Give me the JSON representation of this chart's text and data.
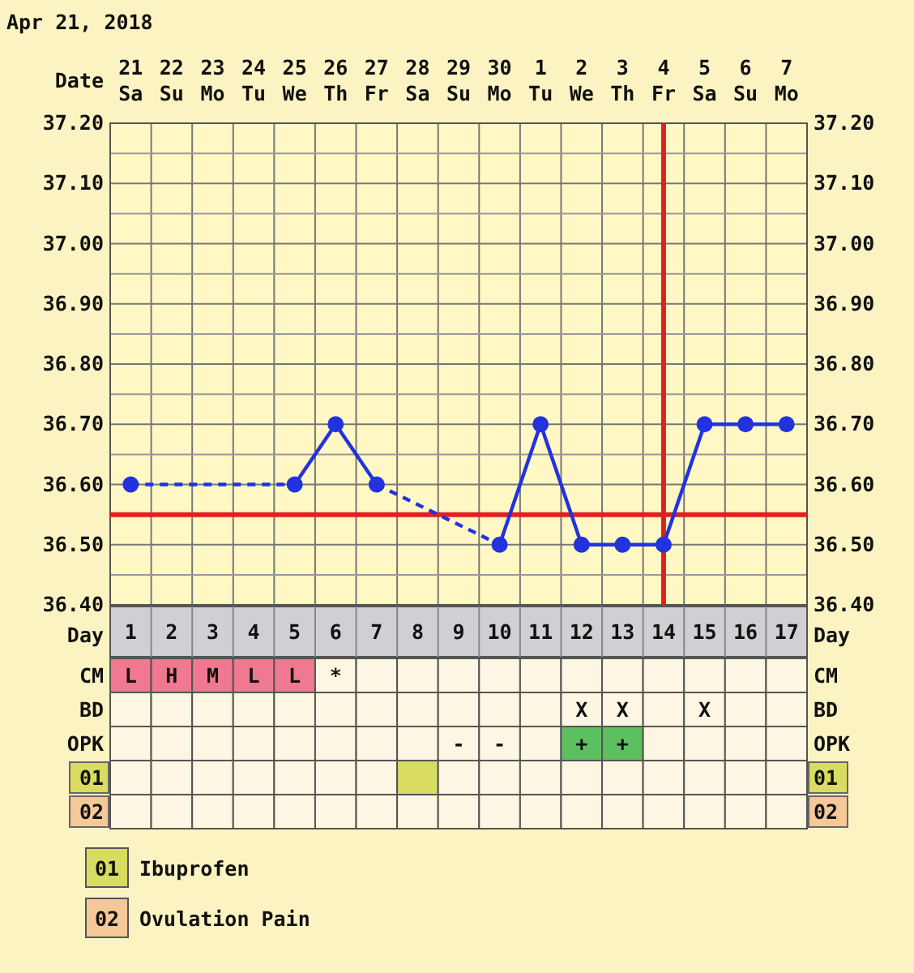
{
  "chart_data": [
    {
      "type": "line",
      "title": "Apr 21, 2018",
      "xlabel": "Day",
      "x2label": "Date",
      "x": [
        1,
        2,
        3,
        4,
        5,
        6,
        7,
        8,
        9,
        10,
        11,
        12,
        13,
        14,
        15,
        16,
        17
      ],
      "xlim": [
        0.5,
        17.5
      ],
      "xticks": [
        1,
        2,
        3,
        4,
        5,
        6,
        7,
        8,
        9,
        10,
        11,
        12,
        13,
        14,
        15,
        16,
        17
      ],
      "x2lim": [
        "2018-04-20T12:00",
        "2018-05-07T12:00"
      ],
      "x2ticks": [
        {
          "value": "2018-04-21",
          "label": "21 Sa"
        },
        {
          "value": "2018-04-22",
          "label": "22 Su"
        },
        {
          "value": "2018-04-23",
          "label": "23 Mo"
        },
        {
          "value": "2018-04-24",
          "label": "24 Tu"
        },
        {
          "value": "2018-04-25",
          "label": "25 We"
        },
        {
          "value": "2018-04-26",
          "label": "26 Th"
        },
        {
          "value": "2018-04-27",
          "label": "27 Fr"
        },
        {
          "value": "2018-04-28",
          "label": "28 Sa"
        },
        {
          "value": "2018-04-29",
          "label": "29 Su"
        },
        {
          "value": "2018-04-30",
          "label": "30 Mo"
        },
        {
          "value": "2018-05-01",
          "label": "1 Tu"
        },
        {
          "value": "2018-05-02",
          "label": "2 We"
        },
        {
          "value": "2018-05-03",
          "label": "3 Th"
        },
        {
          "value": "2018-05-04",
          "label": "4 Fr"
        },
        {
          "value": "2018-05-05",
          "label": "5 Sa"
        },
        {
          "value": "2018-05-06",
          "label": "6 Su"
        },
        {
          "value": "2018-05-07",
          "label": "7 Mo"
        }
      ],
      "series": [
        {
          "color": "#2233dd",
          "values": [
            36.6,
            null,
            null,
            null,
            36.6,
            36.7,
            36.6,
            null,
            null,
            36.5,
            36.7,
            36.5,
            36.5,
            36.5,
            36.7,
            36.7,
            36.7
          ]
        }
      ],
      "marker": "circle",
      "line_style": "solid",
      "ylim": [
        36.4,
        37.2
      ],
      "yticks": [
        {
          "value": 36.4,
          "label": "36.40"
        },
        {
          "value": 36.5,
          "label": "36.50"
        },
        {
          "value": 36.6,
          "label": "36.60"
        },
        {
          "value": 36.7,
          "label": "36.70"
        },
        {
          "value": 36.8,
          "label": "36.80"
        },
        {
          "value": 36.9,
          "label": "36.90"
        },
        {
          "value": 37.0,
          "label": "37.00"
        },
        {
          "value": 37.1,
          "label": "37.10"
        },
        {
          "value": 37.2,
          "label": "37.20"
        }
      ],
      "y2lim": [
        36.4,
        37.2
      ],
      "y2ticks": [
        {
          "value": 36.4,
          "label": "36.40"
        },
        {
          "value": 36.5,
          "label": "36.50"
        },
        {
          "value": 36.6,
          "label": "36.60"
        },
        {
          "value": 36.7,
          "label": "36.70"
        },
        {
          "value": 36.8,
          "label": "36.80"
        },
        {
          "value": 36.9,
          "label": "36.90"
        },
        {
          "value": 37.0,
          "label": "37.00"
        },
        {
          "value": 37.1,
          "label": "37.10"
        },
        {
          "value": 37.2,
          "label": "37.20"
        }
      ],
      "ref_lines": [
        {
          "axis": "y",
          "value": 36.55,
          "color": "#e02020"
        },
        {
          "axis": "x",
          "value": 14,
          "color": "#e02020"
        }
      ],
      "grid": true
    },
    {
      "type": "other",
      "y_categories": [
        "CM",
        "BD",
        "OPK",
        "01",
        "02"
      ],
      "y2_categories": [
        "CM",
        "BD",
        "OPK",
        "01",
        "02"
      ],
      "colors": [
        [
          "#f07890",
          "#f07890",
          "#f07890",
          "#f07890",
          "#f07890",
          null,
          null,
          null,
          null,
          null,
          null,
          null,
          null,
          null,
          null,
          null,
          null
        ],
        [
          null,
          null,
          null,
          null,
          null,
          null,
          null,
          null,
          null,
          null,
          null,
          null,
          null,
          null,
          null,
          null,
          null
        ],
        [
          null,
          null,
          null,
          null,
          null,
          null,
          null,
          null,
          null,
          null,
          null,
          "#5cc060",
          "#5cc060",
          null,
          null,
          null,
          null
        ],
        [
          null,
          null,
          null,
          null,
          null,
          null,
          null,
          "#d8dc60",
          null,
          null,
          null,
          null,
          null,
          null,
          null,
          null,
          null
        ],
        [
          null,
          null,
          null,
          null,
          null,
          null,
          null,
          null,
          null,
          null,
          null,
          null,
          null,
          null,
          null,
          null,
          null
        ]
      ],
      "cell_labels": [
        [
          "L",
          "H",
          "M",
          "L",
          "L",
          "*",
          null,
          null,
          null,
          null,
          null,
          null,
          null,
          null,
          null,
          null,
          null
        ],
        [
          null,
          null,
          null,
          null,
          null,
          null,
          null,
          null,
          null,
          null,
          null,
          "X",
          "X",
          null,
          "X",
          null,
          null
        ],
        [
          null,
          null,
          null,
          null,
          null,
          null,
          null,
          null,
          "-",
          "-",
          null,
          "+",
          "+",
          null,
          null,
          null,
          null
        ],
        [
          null,
          null,
          null,
          null,
          null,
          null,
          null,
          null,
          null,
          null,
          null,
          null,
          null,
          null,
          null,
          null,
          null
        ],
        [
          null,
          null,
          null,
          null,
          null,
          null,
          null,
          null,
          null,
          null,
          null,
          null,
          null,
          null,
          null,
          null,
          null
        ]
      ],
      "annotations": [
        "Ibuprofen",
        "Ovulation Pain"
      ]
    }
  ]
}
